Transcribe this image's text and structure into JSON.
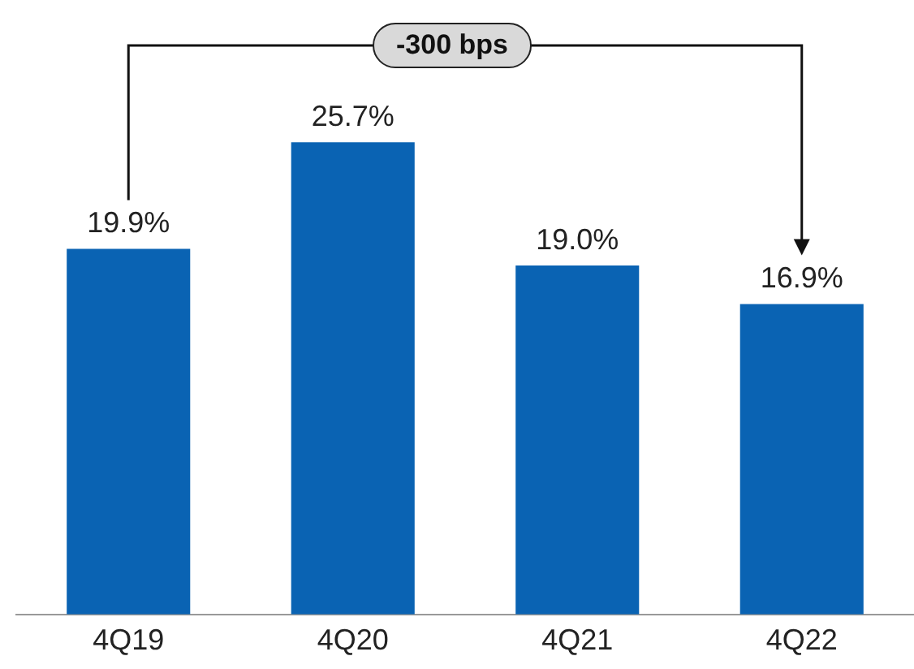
{
  "chart_data": {
    "type": "bar",
    "categories": [
      "4Q19",
      "4Q20",
      "4Q21",
      "4Q22"
    ],
    "values": [
      19.9,
      25.7,
      19.0,
      16.9
    ],
    "value_labels": [
      "19.9%",
      "25.7%",
      "19.0%",
      "16.9%"
    ],
    "color": "#0a63b3",
    "annotations": [
      "-300 bps"
    ],
    "grid": false,
    "legend": false
  }
}
